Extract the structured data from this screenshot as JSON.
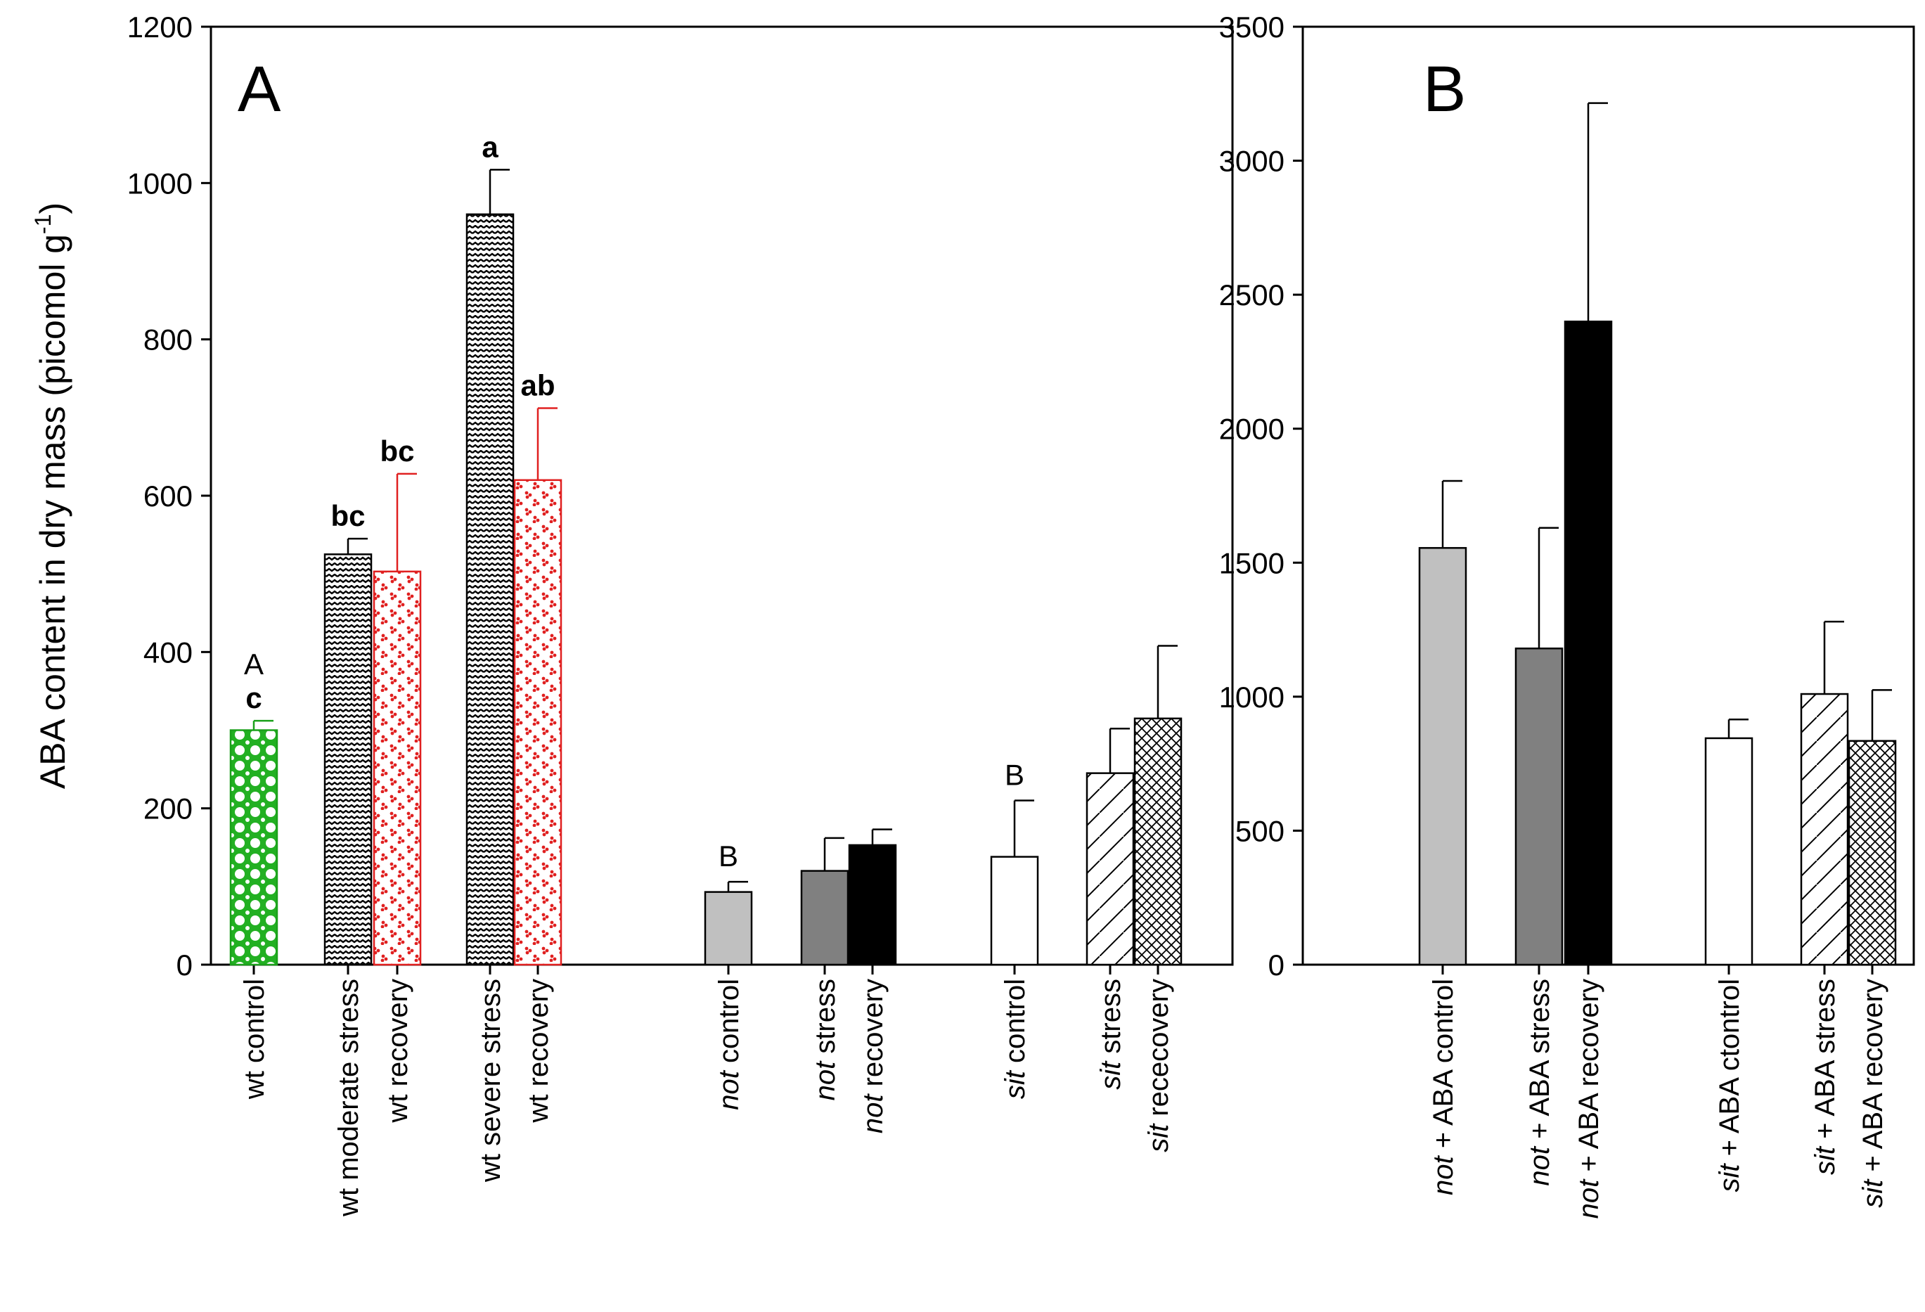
{
  "chart_data": [
    {
      "panel": "A",
      "type": "bar",
      "ylabel": "ABA content in dry mass (picomol g",
      "ylabel_superscript": "-1",
      "ylabel_close": ")",
      "ylim": [
        0,
        1200
      ],
      "yticks": [
        "0",
        "200",
        "400",
        "600",
        "800",
        "1000",
        "1200"
      ],
      "ytick_values": [
        0,
        200,
        400,
        600,
        800,
        1000,
        1200
      ],
      "bars": [
        {
          "id": "wt-control",
          "label": [
            {
              "t": "wt control",
              "i": false
            }
          ],
          "value": 300,
          "error": 12,
          "fill": "green-dots",
          "letter": "c",
          "letter2": "A",
          "err_color": "#1aa01a"
        },
        {
          "id": "wt-moderate-stress",
          "label": [
            {
              "t": "wt moderate stress",
              "i": false
            }
          ],
          "value": 525,
          "error": 20,
          "fill": "black-wave",
          "letter": "bc",
          "letter2": null,
          "err_color": "#000000"
        },
        {
          "id": "wt-moderate-recovery",
          "label": [
            {
              "t": "wt recovery",
              "i": false
            }
          ],
          "value": 503,
          "error": 125,
          "fill": "red-dots",
          "letter": "bc",
          "letter2": null,
          "err_color": "#e02020"
        },
        {
          "id": "wt-severe-stress",
          "label": [
            {
              "t": "wt severe stress",
              "i": false
            }
          ],
          "value": 960,
          "error": 57,
          "fill": "black-wave",
          "letter": "a",
          "letter2": null,
          "err_color": "#000000"
        },
        {
          "id": "wt-severe-recovery",
          "label": [
            {
              "t": "wt recovery",
              "i": false
            }
          ],
          "value": 620,
          "error": 92,
          "fill": "red-dots",
          "letter": "ab",
          "letter2": null,
          "err_color": "#e02020"
        },
        {
          "id": "not-control",
          "label": [
            {
              "t": "not",
              "i": true
            },
            {
              "t": " control",
              "i": false
            }
          ],
          "value": 93,
          "error": 13,
          "fill": "light-gray",
          "letter": null,
          "letter2": "B",
          "err_color": "#000000"
        },
        {
          "id": "not-stress",
          "label": [
            {
              "t": "not",
              "i": true
            },
            {
              "t": " stress",
              "i": false
            }
          ],
          "value": 120,
          "error": 42,
          "fill": "dark-gray",
          "letter": null,
          "letter2": null,
          "err_color": "#000000"
        },
        {
          "id": "not-recovery",
          "label": [
            {
              "t": "not",
              "i": true
            },
            {
              "t": " recovery",
              "i": false
            }
          ],
          "value": 153,
          "error": 20,
          "fill": "black",
          "letter": null,
          "letter2": null,
          "err_color": "#000000"
        },
        {
          "id": "sit-control",
          "label": [
            {
              "t": "sit",
              "i": true
            },
            {
              "t": " control",
              "i": false
            }
          ],
          "value": 138,
          "error": 72,
          "fill": "white",
          "letter": null,
          "letter2": "B",
          "err_color": "#000000"
        },
        {
          "id": "sit-stress",
          "label": [
            {
              "t": "sit",
              "i": true
            },
            {
              "t": " stress",
              "i": false
            }
          ],
          "value": 245,
          "error": 57,
          "fill": "diag",
          "letter": null,
          "letter2": null,
          "err_color": "#000000"
        },
        {
          "id": "sit-recovery",
          "label": [
            {
              "t": "sit",
              "i": true
            },
            {
              "t": " rececovery",
              "i": false
            }
          ],
          "value": 315,
          "error": 93,
          "fill": "crosshatch",
          "letter": null,
          "letter2": null,
          "err_color": "#000000"
        }
      ]
    },
    {
      "panel": "B",
      "type": "bar",
      "ylim": [
        0,
        3500
      ],
      "yticks": [
        "0",
        "500",
        "1000",
        "1500",
        "2000",
        "2500",
        "3000",
        "3500"
      ],
      "ytick_values": [
        0,
        500,
        1000,
        1500,
        2000,
        2500,
        3000,
        3500
      ],
      "bars": [
        {
          "id": "not-aba-control",
          "label": [
            {
              "t": "not",
              "i": true
            },
            {
              "t": " + ABA control",
              "i": false
            }
          ],
          "value": 1555,
          "error": 250,
          "fill": "light-gray",
          "err_color": "#000000"
        },
        {
          "id": "not-aba-stress",
          "label": [
            {
              "t": "not",
              "i": true
            },
            {
              "t": " + ABA stress",
              "i": false
            }
          ],
          "value": 1180,
          "error": 450,
          "fill": "dark-gray",
          "err_color": "#000000"
        },
        {
          "id": "not-aba-recovery",
          "label": [
            {
              "t": "not",
              "i": true
            },
            {
              "t": " + ABA recovery",
              "i": false
            }
          ],
          "value": 2400,
          "error": 815,
          "fill": "black",
          "err_color": "#000000"
        },
        {
          "id": "sit-aba-control",
          "label": [
            {
              "t": "sit",
              "i": true
            },
            {
              "t": " + ABA ctontrol",
              "i": false
            }
          ],
          "value": 845,
          "error": 70,
          "fill": "white",
          "err_color": "#000000"
        },
        {
          "id": "sit-aba-stress",
          "label": [
            {
              "t": "sit",
              "i": true
            },
            {
              "t": " + ABA stress",
              "i": false
            }
          ],
          "value": 1010,
          "error": 270,
          "fill": "diag",
          "err_color": "#000000"
        },
        {
          "id": "sit-aba-recovery",
          "label": [
            {
              "t": "sit",
              "i": true
            },
            {
              "t": " + ABA recovery",
              "i": false
            }
          ],
          "value": 835,
          "error": 190,
          "fill": "crosshatch",
          "err_color": "#000000"
        }
      ]
    }
  ],
  "panel_letters": {
    "a": "A",
    "b": "B"
  }
}
